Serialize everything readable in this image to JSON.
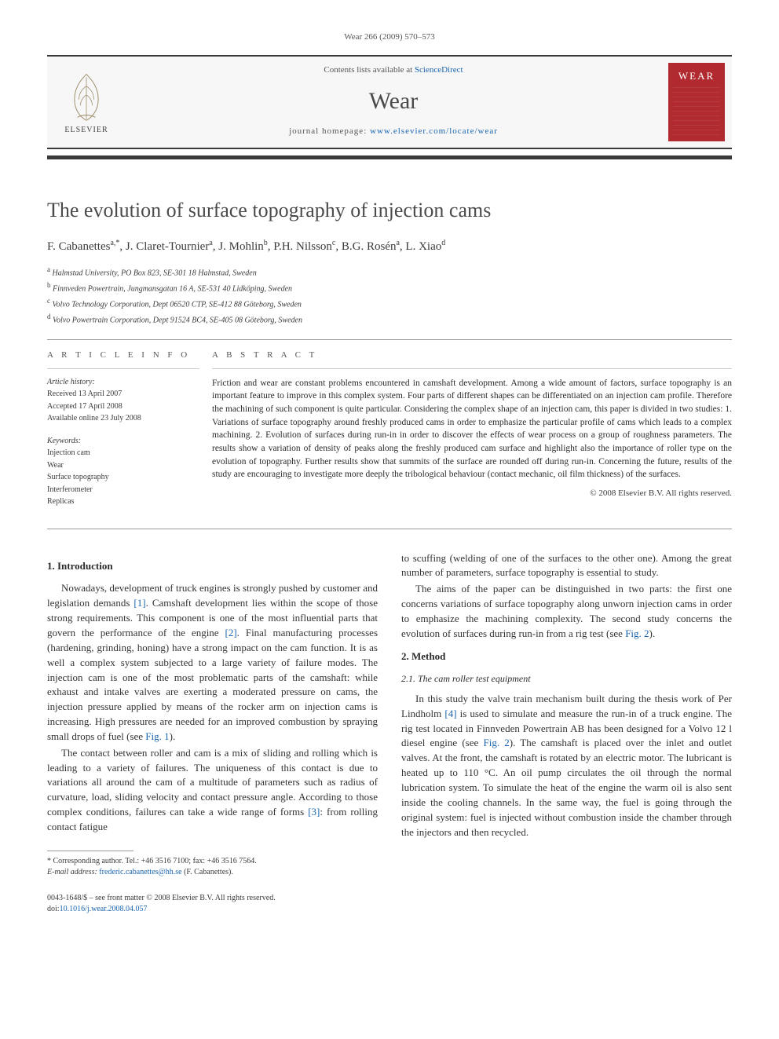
{
  "header_citation": "Wear 266 (2009) 570–573",
  "banner": {
    "contents_prefix": "Contents lists available at ",
    "contents_link": "ScienceDirect",
    "journal": "Wear",
    "homepage_prefix": "journal homepage: ",
    "homepage_url": "www.elsevier.com/locate/wear",
    "elsevier_label": "ELSEVIER",
    "cover_label": "WEAR"
  },
  "title": "The evolution of surface topography of injection cams",
  "authors_html": "F. Cabanettes<sup>a,*</sup>, J. Claret-Tournier<sup>a</sup>, J. Mohlin<sup>b</sup>, P.H. Nilsson<sup>c</sup>, B.G. Rosén<sup>a</sup>, L. Xiao<sup>d</sup>",
  "affiliations": [
    "<sup>a</sup> Halmstad University, PO Box 823, SE-301 18 Halmstad, Sweden",
    "<sup>b</sup> Finnveden Powertrain, Jungmansgatan 16 A, SE-531 40 Lidköping, Sweden",
    "<sup>c</sup> Volvo Technology Corporation, Dept 06520 CTP, SE-412 88 Göteborg, Sweden",
    "<sup>d</sup> Volvo Powertrain Corporation, Dept 91524 BC4, SE-405 08 Göteborg, Sweden"
  ],
  "info": {
    "label": "A R T I C L E   I N F O",
    "history_label": "Article history:",
    "history": [
      "Received 13 April 2007",
      "Accepted 17 April 2008",
      "Available online 23 July 2008"
    ],
    "keywords_label": "Keywords:",
    "keywords": [
      "Injection cam",
      "Wear",
      "Surface topography",
      "Interferometer",
      "Replicas"
    ]
  },
  "abstract": {
    "label": "A B S T R A C T",
    "text": "Friction and wear are constant problems encountered in camshaft development. Among a wide amount of factors, surface topography is an important feature to improve in this complex system. Four parts of different shapes can be differentiated on an injection cam profile. Therefore the machining of such component is quite particular. Considering the complex shape of an injection cam, this paper is divided in two studies: 1. Variations of surface topography around freshly produced cams in order to emphasize the particular profile of cams which leads to a complex machining. 2. Evolution of surfaces during run-in in order to discover the effects of wear process on a group of roughness parameters. The results show a variation of density of peaks along the freshly produced cam surface and highlight also the importance of roller type on the evolution of topography. Further results show that summits of the surface are rounded off during run-in. Concerning the future, results of the study are encouraging to investigate more deeply the tribological behaviour (contact mechanic, oil film thickness) of the surfaces.",
    "copyright": "© 2008 Elsevier B.V. All rights reserved."
  },
  "body": {
    "sec1_head": "1.  Introduction",
    "p1a": "Nowadays, development of truck engines is strongly pushed by customer and legislation demands ",
    "ref1": "[1]",
    "p1b": ". Camshaft development lies within the scope of those strong requirements. This component is one of the most influential parts that govern the performance of the engine ",
    "ref2": "[2]",
    "p1c": ". Final manufacturing processes (hardening, grinding, honing) have a strong impact on the cam function. It is as well a complex system subjected to a large variety of failure modes. The injection cam is one of the most problematic parts of the camshaft: while exhaust and intake valves are exerting a moderated pressure on cams, the injection pressure applied by means of the rocker arm on injection cams is increasing. High pressures are needed for an improved combustion by spraying small drops of fuel (see ",
    "fig1": "Fig. 1",
    "p1d": ").",
    "p2a": "The contact between roller and cam is a mix of sliding and rolling which is leading to a variety of failures. The uniqueness of this contact is due to variations all around the cam of a multitude of parameters such as radius of curvature, load, sliding velocity and contact pressure angle. According to those complex conditions, failures can take a wide range of forms ",
    "ref3": "[3]",
    "p2b": ": from rolling contact fatigue",
    "p3": "to scuffing (welding of one of the surfaces to the other one). Among the great number of parameters, surface topography is essential to study.",
    "p4a": "The aims of the paper can be distinguished in two parts: the first one concerns variations of surface topography along unworn injection cams in order to emphasize the machining complexity. The second study concerns the evolution of surfaces during run-in from a rig test (see ",
    "fig2a": "Fig. 2",
    "p4b": ").",
    "sec2_head": "2.  Method",
    "sec21_head": "2.1.  The cam roller test equipment",
    "p5a": "In this study the valve train mechanism built during the thesis work of Per Lindholm ",
    "ref4": "[4]",
    "p5b": " is used to simulate and measure the run-in of a truck engine. The rig test located in Finnveden Powertrain AB has been designed for a Volvo 12 l diesel engine (see ",
    "fig2b": "Fig. 2",
    "p5c": "). The camshaft is placed over the inlet and outlet valves. At the front, the camshaft is rotated by an electric motor. The lubricant is heated up to 110 °C. An oil pump circulates the oil through the normal lubrication system. To simulate the heat of the engine the warm oil is also sent inside the cooling channels. In the same way, the fuel is going through the original system: fuel is injected without combustion inside the chamber through the injectors and then recycled."
  },
  "footnote": {
    "corr": "* Corresponding author. Tel.: +46 3516 7100; fax: +46 3516 7564.",
    "email_label": "E-mail address: ",
    "email": "frederic.cabanettes@hh.se",
    "email_suffix": " (F. Cabanettes)."
  },
  "footer": {
    "issn_line": "0043-1648/$ – see front matter © 2008 Elsevier B.V. All rights reserved.",
    "doi_prefix": "doi:",
    "doi": "10.1016/j.wear.2008.04.057"
  },
  "colors": {
    "link": "#1a64b0",
    "rule": "#3a3a3a",
    "cover_bg": "#b02a2f"
  }
}
